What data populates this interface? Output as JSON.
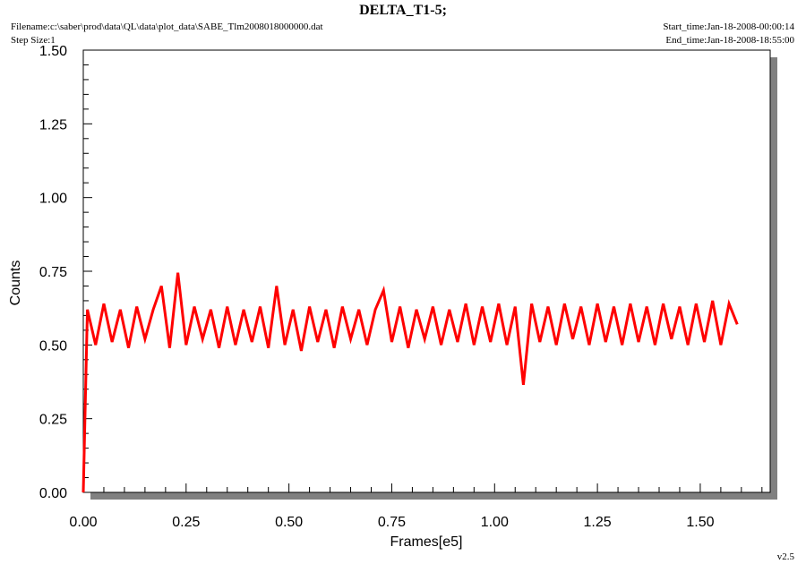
{
  "chart_data": {
    "type": "line",
    "title": "DELTA_T1-5;",
    "filename": "Filename:c:\\saber\\prod\\data\\QL\\data\\plot_data\\SABE_Tlm2008018000000.dat",
    "step_size": "Step Size:1",
    "start_time": "Start_time:Jan-18-2008-00:00:14",
    "end_time": "End_time:Jan-18-2008-18:55:00",
    "version": "v2.5",
    "xlabel": "Frames[e5]",
    "ylabel": "Counts",
    "xlim": [
      0,
      1.67
    ],
    "ylim": [
      0,
      1.5
    ],
    "xticks": [
      {
        "value": 0,
        "label": "0.00"
      },
      0.25,
      {
        "value": 0.5,
        "label": "0.50"
      },
      0.75,
      {
        "value": 1,
        "label": "1.00"
      },
      1.25,
      {
        "value": 1.5,
        "label": "1.50"
      }
    ],
    "yticks": [
      {
        "value": 0,
        "label": "0.00"
      },
      0.25,
      {
        "value": 0.5,
        "label": "0.50"
      },
      0.75,
      {
        "value": 1,
        "label": "1.00"
      },
      1.25,
      {
        "value": 1.5,
        "label": "1.50"
      }
    ],
    "xminorticks": [
      0.05,
      0.1,
      0.15,
      0.2,
      0.3,
      0.35,
      0.4,
      0.45,
      0.55,
      0.6,
      0.65,
      0.7,
      0.8,
      0.85,
      0.9,
      0.95,
      1.05,
      1.1,
      1.15,
      1.2,
      1.3,
      1.35,
      1.4,
      1.45,
      1.55,
      1.6,
      1.65
    ],
    "yminorticks": [
      0.05,
      0.1,
      0.15,
      0.2,
      0.3,
      0.35,
      0.4,
      0.45,
      0.55,
      0.6,
      0.65,
      0.7,
      0.8,
      0.85,
      0.9,
      0.95,
      1.05,
      1.1,
      1.15,
      1.2,
      1.3,
      1.35,
      1.4,
      1.45
    ],
    "series": [
      {
        "color": "#ff0000",
        "x": [
          0,
          0.01,
          0.03,
          0.05,
          0.07,
          0.09,
          0.11,
          0.13,
          0.15,
          0.17,
          0.19,
          0.21,
          0.23,
          0.25,
          0.27,
          0.29,
          0.31,
          0.33,
          0.35,
          0.37,
          0.39,
          0.41,
          0.43,
          0.45,
          0.47,
          0.49,
          0.51,
          0.53,
          0.55,
          0.57,
          0.59,
          0.61,
          0.63,
          0.65,
          0.67,
          0.69,
          0.71,
          0.73,
          0.75,
          0.77,
          0.79,
          0.81,
          0.83,
          0.85,
          0.87,
          0.89,
          0.91,
          0.93,
          0.95,
          0.97,
          0.99,
          1.01,
          1.03,
          1.05,
          1.07,
          1.09,
          1.11,
          1.13,
          1.15,
          1.17,
          1.19,
          1.21,
          1.23,
          1.25,
          1.27,
          1.29,
          1.31,
          1.33,
          1.35,
          1.37,
          1.39,
          1.41,
          1.43,
          1.45,
          1.47,
          1.49,
          1.51,
          1.53,
          1.55,
          1.57,
          1.59
        ],
        "values": [
          0,
          0.62,
          0.5,
          0.64,
          0.51,
          0.62,
          0.49,
          0.63,
          0.52,
          0.62,
          0.7,
          0.49,
          0.745,
          0.5,
          0.63,
          0.52,
          0.62,
          0.49,
          0.63,
          0.5,
          0.62,
          0.51,
          0.63,
          0.49,
          0.7,
          0.5,
          0.62,
          0.48,
          0.63,
          0.51,
          0.62,
          0.49,
          0.63,
          0.52,
          0.62,
          0.5,
          0.62,
          0.685,
          0.51,
          0.63,
          0.49,
          0.62,
          0.52,
          0.63,
          0.5,
          0.62,
          0.51,
          0.64,
          0.5,
          0.63,
          0.51,
          0.64,
          0.5,
          0.63,
          0.365,
          0.64,
          0.51,
          0.63,
          0.5,
          0.64,
          0.52,
          0.63,
          0.5,
          0.64,
          0.51,
          0.63,
          0.5,
          0.64,
          0.51,
          0.63,
          0.5,
          0.64,
          0.52,
          0.63,
          0.5,
          0.64,
          0.51,
          0.65,
          0.5,
          0.64,
          0.57
        ]
      }
    ]
  }
}
